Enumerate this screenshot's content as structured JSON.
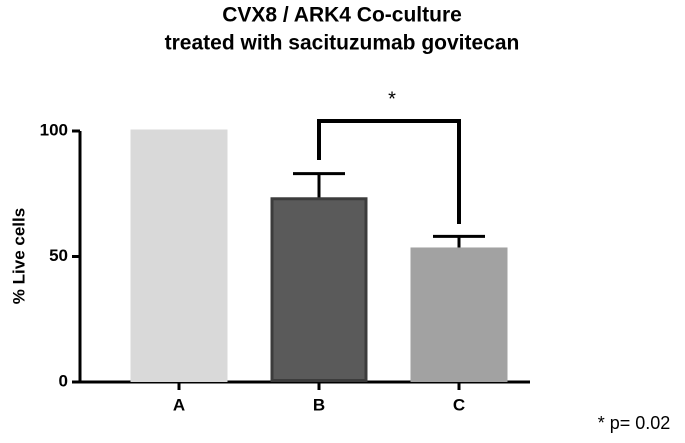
{
  "chart_data": {
    "type": "bar",
    "title": [
      "CVX8 / ARK4 Co-culture",
      "treated with sacituzumab govitecan"
    ],
    "y_label": "% Live cells",
    "categories": [
      "A",
      "B",
      "C"
    ],
    "values": [
      100,
      73,
      53
    ],
    "errors": [
      null,
      10,
      5
    ],
    "colors": [
      "#d9d9d9",
      "#5a5a5a",
      "#a2a2a2"
    ],
    "ylim": [
      0,
      100
    ],
    "yticks": [
      0,
      50,
      100
    ],
    "annotation": "*",
    "note": "* p= 0.02"
  }
}
